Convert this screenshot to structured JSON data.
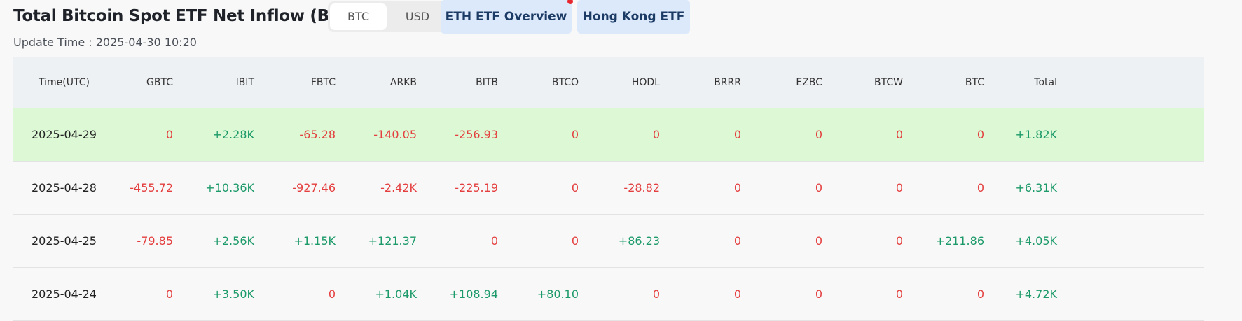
{
  "header": {
    "title": "Total Bitcoin Spot ETF Net Inflow (BTC)",
    "update_time": "Update Time : 2025-04-30 10:20",
    "unit_options": [
      "BTC",
      "USD"
    ],
    "selected_unit": "BTC",
    "links": [
      "ETH ETF Overview",
      "Hong Kong ETF"
    ]
  },
  "table": {
    "columns": [
      "Time(UTC)",
      "GBTC",
      "IBIT",
      "FBTC",
      "ARKB",
      "BITB",
      "BTCO",
      "HODL",
      "BRRR",
      "EZBC",
      "BTCW",
      "BTC",
      "Total"
    ],
    "rows": [
      [
        "2025-04-29",
        "0",
        "+2.28K",
        "-65.28",
        "-140.05",
        "-256.93",
        "0",
        "0",
        "0",
        "0",
        "0",
        "0",
        "+1.82K"
      ],
      [
        "2025-04-28",
        "-455.72",
        "+10.36K",
        "-927.46",
        "-2.42K",
        "-225.19",
        "0",
        "-28.82",
        "0",
        "0",
        "0",
        "0",
        "+6.31K"
      ],
      [
        "2025-04-25",
        "-79.85",
        "+2.56K",
        "+1.15K",
        "+121.37",
        "0",
        "0",
        "+86.23",
        "0",
        "0",
        "0",
        "+211.86",
        "+4.05K"
      ],
      [
        "2025-04-24",
        "0",
        "+3.50K",
        "0",
        "+1.04K",
        "+108.94",
        "+80.10",
        "0",
        "0",
        "0",
        "0",
        "0",
        "+4.72K"
      ]
    ],
    "highlighted_row": 0
  },
  "colors": {
    "positive": "#1c9a69",
    "negative": "#e43e3e",
    "highlight_row": "#dcf8d4",
    "header_bg": "#eef1f4",
    "link_pill_bg": "#dbe9fb",
    "notification_dot": "#e8262e"
  }
}
